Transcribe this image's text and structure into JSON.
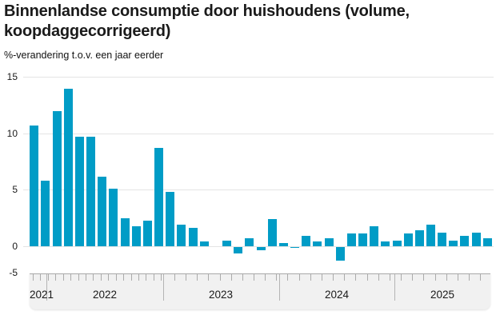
{
  "header": {
    "title_line1": "Binnenlandse consumptie door huishoudens (volume,",
    "title_line2": "koopdaggecorrigeerd)",
    "subtitle": "%-verandering t.o.v. een jaar eerder"
  },
  "colors": {
    "bar": "#009cc6",
    "grid": "#e4e4e4",
    "band_bg": "#f1f1f1",
    "tick": "#ababab",
    "text": "#1a1a1a"
  },
  "y_axis": {
    "ticks": [
      15,
      10,
      5,
      0,
      -5
    ]
  },
  "x_axis": {
    "years": [
      "2021",
      "2022",
      "2023",
      "2024",
      "2025"
    ]
  },
  "chart_data": {
    "type": "bar",
    "title": "Binnenlandse consumptie door huishoudens (volume, koopdaggecorrigeerd)",
    "ylabel": "%-verandering t.o.v. een jaar eerder",
    "xlabel": "",
    "ylim": [
      -5,
      15
    ],
    "grid": true,
    "legend": "none",
    "x": [
      "2022-04",
      "2022-05",
      "2022-06",
      "2022-07",
      "2022-08",
      "2022-09",
      "2022-10",
      "2022-11",
      "2022-12",
      "2023-01",
      "2023-02",
      "2023-03",
      "2023-04",
      "2023-05",
      "2023-06",
      "2023-07",
      "2023-08",
      "2023-09",
      "2023-10",
      "2023-11",
      "2023-12",
      "2024-01",
      "2024-02",
      "2024-03",
      "2024-04",
      "2024-05",
      "2024-06",
      "2024-07",
      "2024-08",
      "2024-09",
      "2024-10",
      "2024-11",
      "2024-12",
      "2025-01",
      "2025-02",
      "2025-03",
      "2025-04",
      "2025-05",
      "2025-06",
      "2025-07",
      "2025-08"
    ],
    "values": [
      10.7,
      5.8,
      12.0,
      14.0,
      9.7,
      9.7,
      6.2,
      5.1,
      2.5,
      1.8,
      2.3,
      8.7,
      4.8,
      1.9,
      1.6,
      0.4,
      0.0,
      0.5,
      -0.6,
      0.7,
      -0.3,
      2.4,
      0.3,
      -0.1,
      0.9,
      0.4,
      0.7,
      -1.2,
      1.1,
      1.1,
      1.8,
      0.4,
      0.5,
      1.1,
      1.4,
      1.9,
      1.2,
      0.5,
      0.9,
      1.2,
      0.7
    ]
  }
}
